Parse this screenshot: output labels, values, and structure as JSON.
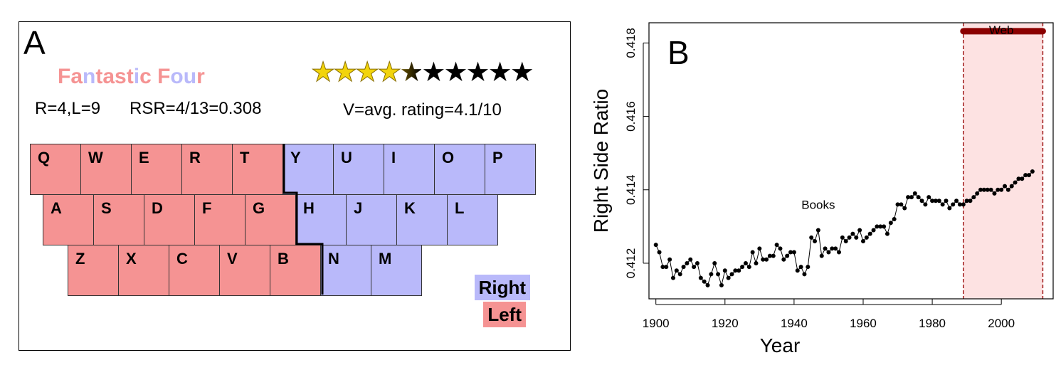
{
  "panel_a": {
    "label": "A",
    "title_segments": [
      {
        "text": "F",
        "color": "#f59393"
      },
      {
        "text": "a",
        "color": "#f59393"
      },
      {
        "text": "n",
        "color": "#b9b9fa"
      },
      {
        "text": "t",
        "color": "#f59393"
      },
      {
        "text": "a",
        "color": "#f59393"
      },
      {
        "text": "s",
        "color": "#f59393"
      },
      {
        "text": "t",
        "color": "#f59393"
      },
      {
        "text": "i",
        "color": "#b9b9fa"
      },
      {
        "text": "c",
        "color": "#f59393"
      },
      {
        "text": " ",
        "color": "#f59393"
      },
      {
        "text": "F",
        "color": "#f59393"
      },
      {
        "text": "o",
        "color": "#b9b9fa"
      },
      {
        "text": "u",
        "color": "#b9b9fa"
      },
      {
        "text": "r",
        "color": "#f59393"
      }
    ],
    "rl_text": "R=4,L=9",
    "rsr_text": "RSR=4/13=0.308",
    "rating_text": "V=avg. rating=4.1/10",
    "rating": {
      "value": 4.1,
      "max": 10
    },
    "keyboard_rows": [
      [
        {
          "k": "Q",
          "side": "left"
        },
        {
          "k": "W",
          "side": "left"
        },
        {
          "k": "E",
          "side": "left"
        },
        {
          "k": "R",
          "side": "left"
        },
        {
          "k": "T",
          "side": "left"
        },
        {
          "k": "Y",
          "side": "right"
        },
        {
          "k": "U",
          "side": "right"
        },
        {
          "k": "I",
          "side": "right"
        },
        {
          "k": "O",
          "side": "right"
        },
        {
          "k": "P",
          "side": "right"
        }
      ],
      [
        {
          "k": "A",
          "side": "left"
        },
        {
          "k": "S",
          "side": "left"
        },
        {
          "k": "D",
          "side": "left"
        },
        {
          "k": "F",
          "side": "left"
        },
        {
          "k": "G",
          "side": "left"
        },
        {
          "k": "H",
          "side": "right"
        },
        {
          "k": "J",
          "side": "right"
        },
        {
          "k": "K",
          "side": "right"
        },
        {
          "k": "L",
          "side": "right"
        }
      ],
      [
        {
          "k": "Z",
          "side": "left"
        },
        {
          "k": "X",
          "side": "left"
        },
        {
          "k": "C",
          "side": "left"
        },
        {
          "k": "V",
          "side": "left"
        },
        {
          "k": "B",
          "side": "left"
        },
        {
          "k": "N",
          "side": "right"
        },
        {
          "k": "M",
          "side": "right"
        }
      ]
    ],
    "legend": {
      "right": "Right",
      "left": "Left"
    },
    "colors": {
      "left": "#f59393",
      "right": "#b9b9fa",
      "star_fill": "#f2d40c",
      "star_empty": "#000000"
    }
  },
  "chart_data": {
    "type": "line",
    "panel_label": "B",
    "xlabel": "Year",
    "ylabel": "Right Side Ratio",
    "xlim": [
      1898,
      2015
    ],
    "ylim": [
      0.41103,
      0.41855
    ],
    "xticks": [
      1900,
      1920,
      1940,
      1960,
      1980,
      2000
    ],
    "yticks": [
      0.412,
      0.414,
      0.416,
      0.418
    ],
    "annotations": [
      {
        "text": "Books",
        "x": 1947,
        "y": 0.4136
      },
      {
        "text": "Web",
        "x": 2000,
        "y": 0.4185
      }
    ],
    "web_region": {
      "x_start": 1989,
      "x_end": 2012,
      "color": "#fde2e2",
      "line_color": "#a01c1c"
    },
    "web_band": {
      "x_start": 1989,
      "x_end": 2012,
      "y": 0.41832,
      "color": "#8b0000"
    },
    "series": [
      {
        "x": [
          1900,
          1901,
          1902,
          1903,
          1904,
          1905,
          1906,
          1907,
          1908,
          1909,
          1910,
          1911,
          1912,
          1913,
          1914,
          1915,
          1916,
          1917,
          1918,
          1919,
          1920,
          1921,
          1922,
          1923,
          1924,
          1925,
          1926,
          1927,
          1928,
          1929,
          1930,
          1931,
          1932,
          1933,
          1934,
          1935,
          1936,
          1937,
          1938,
          1939,
          1940,
          1941,
          1942,
          1943,
          1944,
          1945,
          1946,
          1947,
          1948,
          1949,
          1950,
          1951,
          1952,
          1953,
          1954,
          1955,
          1956,
          1957,
          1958,
          1959,
          1960,
          1961,
          1962,
          1963,
          1964,
          1965,
          1966,
          1967,
          1968,
          1969,
          1970,
          1971,
          1972,
          1973,
          1974,
          1975,
          1976,
          1977,
          1978,
          1979,
          1980,
          1981,
          1982,
          1983,
          1984,
          1985,
          1986,
          1987,
          1988,
          1989,
          1990,
          1991,
          1992,
          1993,
          1994,
          1995,
          1996,
          1997,
          1998,
          1999,
          2000,
          2001,
          2002,
          2003,
          2004,
          2005,
          2006,
          2007,
          2008,
          2009
        ],
        "y": [
          0.4125,
          0.4123,
          0.4119,
          0.4119,
          0.4121,
          0.4116,
          0.4118,
          0.4117,
          0.4119,
          0.412,
          0.4121,
          0.4119,
          0.412,
          0.4116,
          0.4115,
          0.4114,
          0.4117,
          0.412,
          0.4117,
          0.4114,
          0.4118,
          0.4116,
          0.4117,
          0.4118,
          0.4118,
          0.4119,
          0.412,
          0.4119,
          0.4123,
          0.412,
          0.4124,
          0.4121,
          0.4121,
          0.4122,
          0.4122,
          0.4125,
          0.4124,
          0.4121,
          0.4122,
          0.4123,
          0.4123,
          0.4118,
          0.4119,
          0.4117,
          0.4119,
          0.4127,
          0.4126,
          0.4129,
          0.4122,
          0.4124,
          0.4123,
          0.4124,
          0.4124,
          0.4123,
          0.4127,
          0.4126,
          0.4127,
          0.4128,
          0.4127,
          0.4129,
          0.4126,
          0.4127,
          0.4128,
          0.4129,
          0.413,
          0.413,
          0.413,
          0.4128,
          0.4131,
          0.4132,
          0.4136,
          0.4136,
          0.4135,
          0.4138,
          0.4138,
          0.4139,
          0.4138,
          0.4137,
          0.4136,
          0.4138,
          0.4137,
          0.4137,
          0.4137,
          0.4136,
          0.4137,
          0.4135,
          0.4136,
          0.4137,
          0.4136,
          0.4136,
          0.4137,
          0.4137,
          0.4138,
          0.4139,
          0.414,
          0.414,
          0.414,
          0.414,
          0.4139,
          0.414,
          0.414,
          0.4141,
          0.414,
          0.4141,
          0.4142,
          0.4143,
          0.4143,
          0.4144,
          0.4144,
          0.4145
        ]
      }
    ]
  }
}
